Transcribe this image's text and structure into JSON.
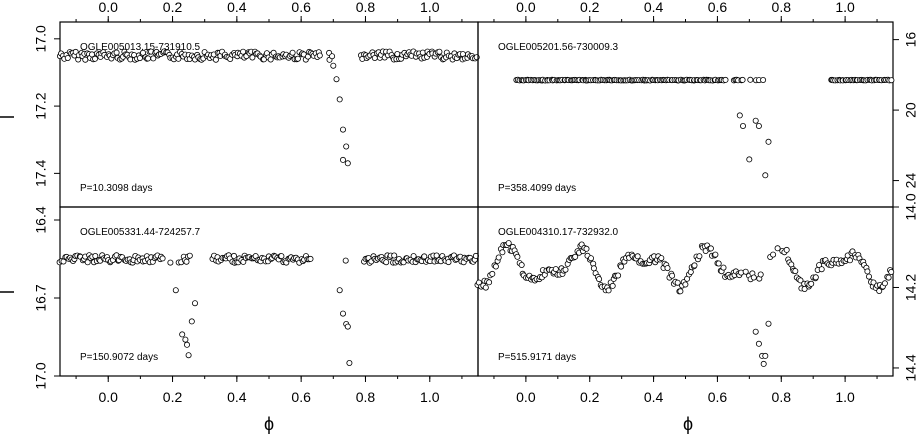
{
  "figure": {
    "x_axis_title": "ϕ"
  },
  "chart_data": [
    {
      "type": "scatter",
      "name": "OGLE005013.15-731910.5",
      "title": "OGLE005013.15-731910.5",
      "annotation": "P=10.3098 days",
      "xlim": [
        -0.15,
        1.15
      ],
      "ylim": [
        17.5,
        16.95
      ],
      "xticks": [
        "0.0",
        "0.2",
        "0.4",
        "0.6",
        "0.8",
        "1.0"
      ],
      "yticks": [
        "17.0",
        "17.2",
        "17.4"
      ],
      "yticks_values": [
        17.0,
        17.2,
        17.4
      ],
      "baseline": 17.05,
      "dips": [
        [
          0.7,
          17.08
        ],
        [
          0.71,
          17.12
        ],
        [
          0.72,
          17.18
        ],
        [
          0.73,
          17.27
        ],
        [
          0.74,
          17.32
        ],
        [
          0.73,
          17.36
        ],
        [
          0.745,
          17.37
        ]
      ],
      "gaps": []
    },
    {
      "type": "scatter",
      "name": "OGLE005201.56-730009.3",
      "title": "OGLE005201.56-730009.3",
      "annotation": "P=358.4099 days",
      "xlim": [
        -0.15,
        1.15
      ],
      "ylim": [
        25.5,
        15.0
      ],
      "xticks": [
        "0.0",
        "0.2",
        "0.4",
        "0.6",
        "0.8",
        "1.0"
      ],
      "yticks": [
        "16",
        "20",
        "24"
      ],
      "yticks_values": [
        16,
        20,
        24
      ],
      "baseline": 18.3,
      "dips": [
        [
          0.67,
          20.3
        ],
        [
          0.68,
          20.9
        ],
        [
          0.7,
          22.8
        ],
        [
          0.72,
          20.6
        ],
        [
          0.73,
          20.9
        ],
        [
          0.75,
          23.7
        ],
        [
          0.76,
          21.8
        ]
      ],
      "gaps": [
        [
          -0.15,
          -0.03
        ],
        [
          0.75,
          0.95
        ]
      ]
    },
    {
      "type": "scatter",
      "name": "OGLE005331.44-724257.7",
      "title": "OGLE005331.44-724257.7",
      "annotation": "P=150.9072 days",
      "xlim": [
        -0.15,
        1.15
      ],
      "ylim": [
        17.0,
        16.35
      ],
      "xticks": [
        "0.0",
        "0.2",
        "0.4",
        "0.6",
        "0.8",
        "1.0"
      ],
      "yticks": [
        "16.4",
        "16.7",
        "17.0"
      ],
      "yticks_values": [
        16.4,
        16.7,
        17.0
      ],
      "baseline": 16.55,
      "dips": [
        [
          0.21,
          16.67
        ],
        [
          0.23,
          16.84
        ],
        [
          0.24,
          16.86
        ],
        [
          0.245,
          16.88
        ],
        [
          0.25,
          16.92
        ],
        [
          0.26,
          16.79
        ],
        [
          0.27,
          16.72
        ],
        [
          0.72,
          16.67
        ],
        [
          0.73,
          16.76
        ],
        [
          0.74,
          16.8
        ],
        [
          0.745,
          16.81
        ],
        [
          0.75,
          16.95
        ]
      ],
      "gaps": [
        [
          0.27,
          0.32
        ],
        [
          0.63,
          0.72
        ]
      ]
    },
    {
      "type": "scatter",
      "name": "OGLE004310.17-732932.0",
      "title": "OGLE004310.17-732932.0",
      "annotation": "P=515.9171 days",
      "xlim": [
        -0.15,
        1.15
      ],
      "ylim": [
        14.42,
        14.0
      ],
      "xticks": [
        "0.0",
        "0.2",
        "0.4",
        "0.6",
        "0.8",
        "1.0"
      ],
      "yticks": [
        "14.0",
        "14.2",
        "14.4"
      ],
      "yticks_values": [
        14.0,
        14.2,
        14.4
      ],
      "baseline": 14.15,
      "dips": [
        [
          0.72,
          14.31
        ],
        [
          0.73,
          14.34
        ],
        [
          0.74,
          14.37
        ],
        [
          0.745,
          14.39
        ],
        [
          0.75,
          14.37
        ],
        [
          0.76,
          14.29
        ]
      ],
      "gaps": []
    }
  ]
}
